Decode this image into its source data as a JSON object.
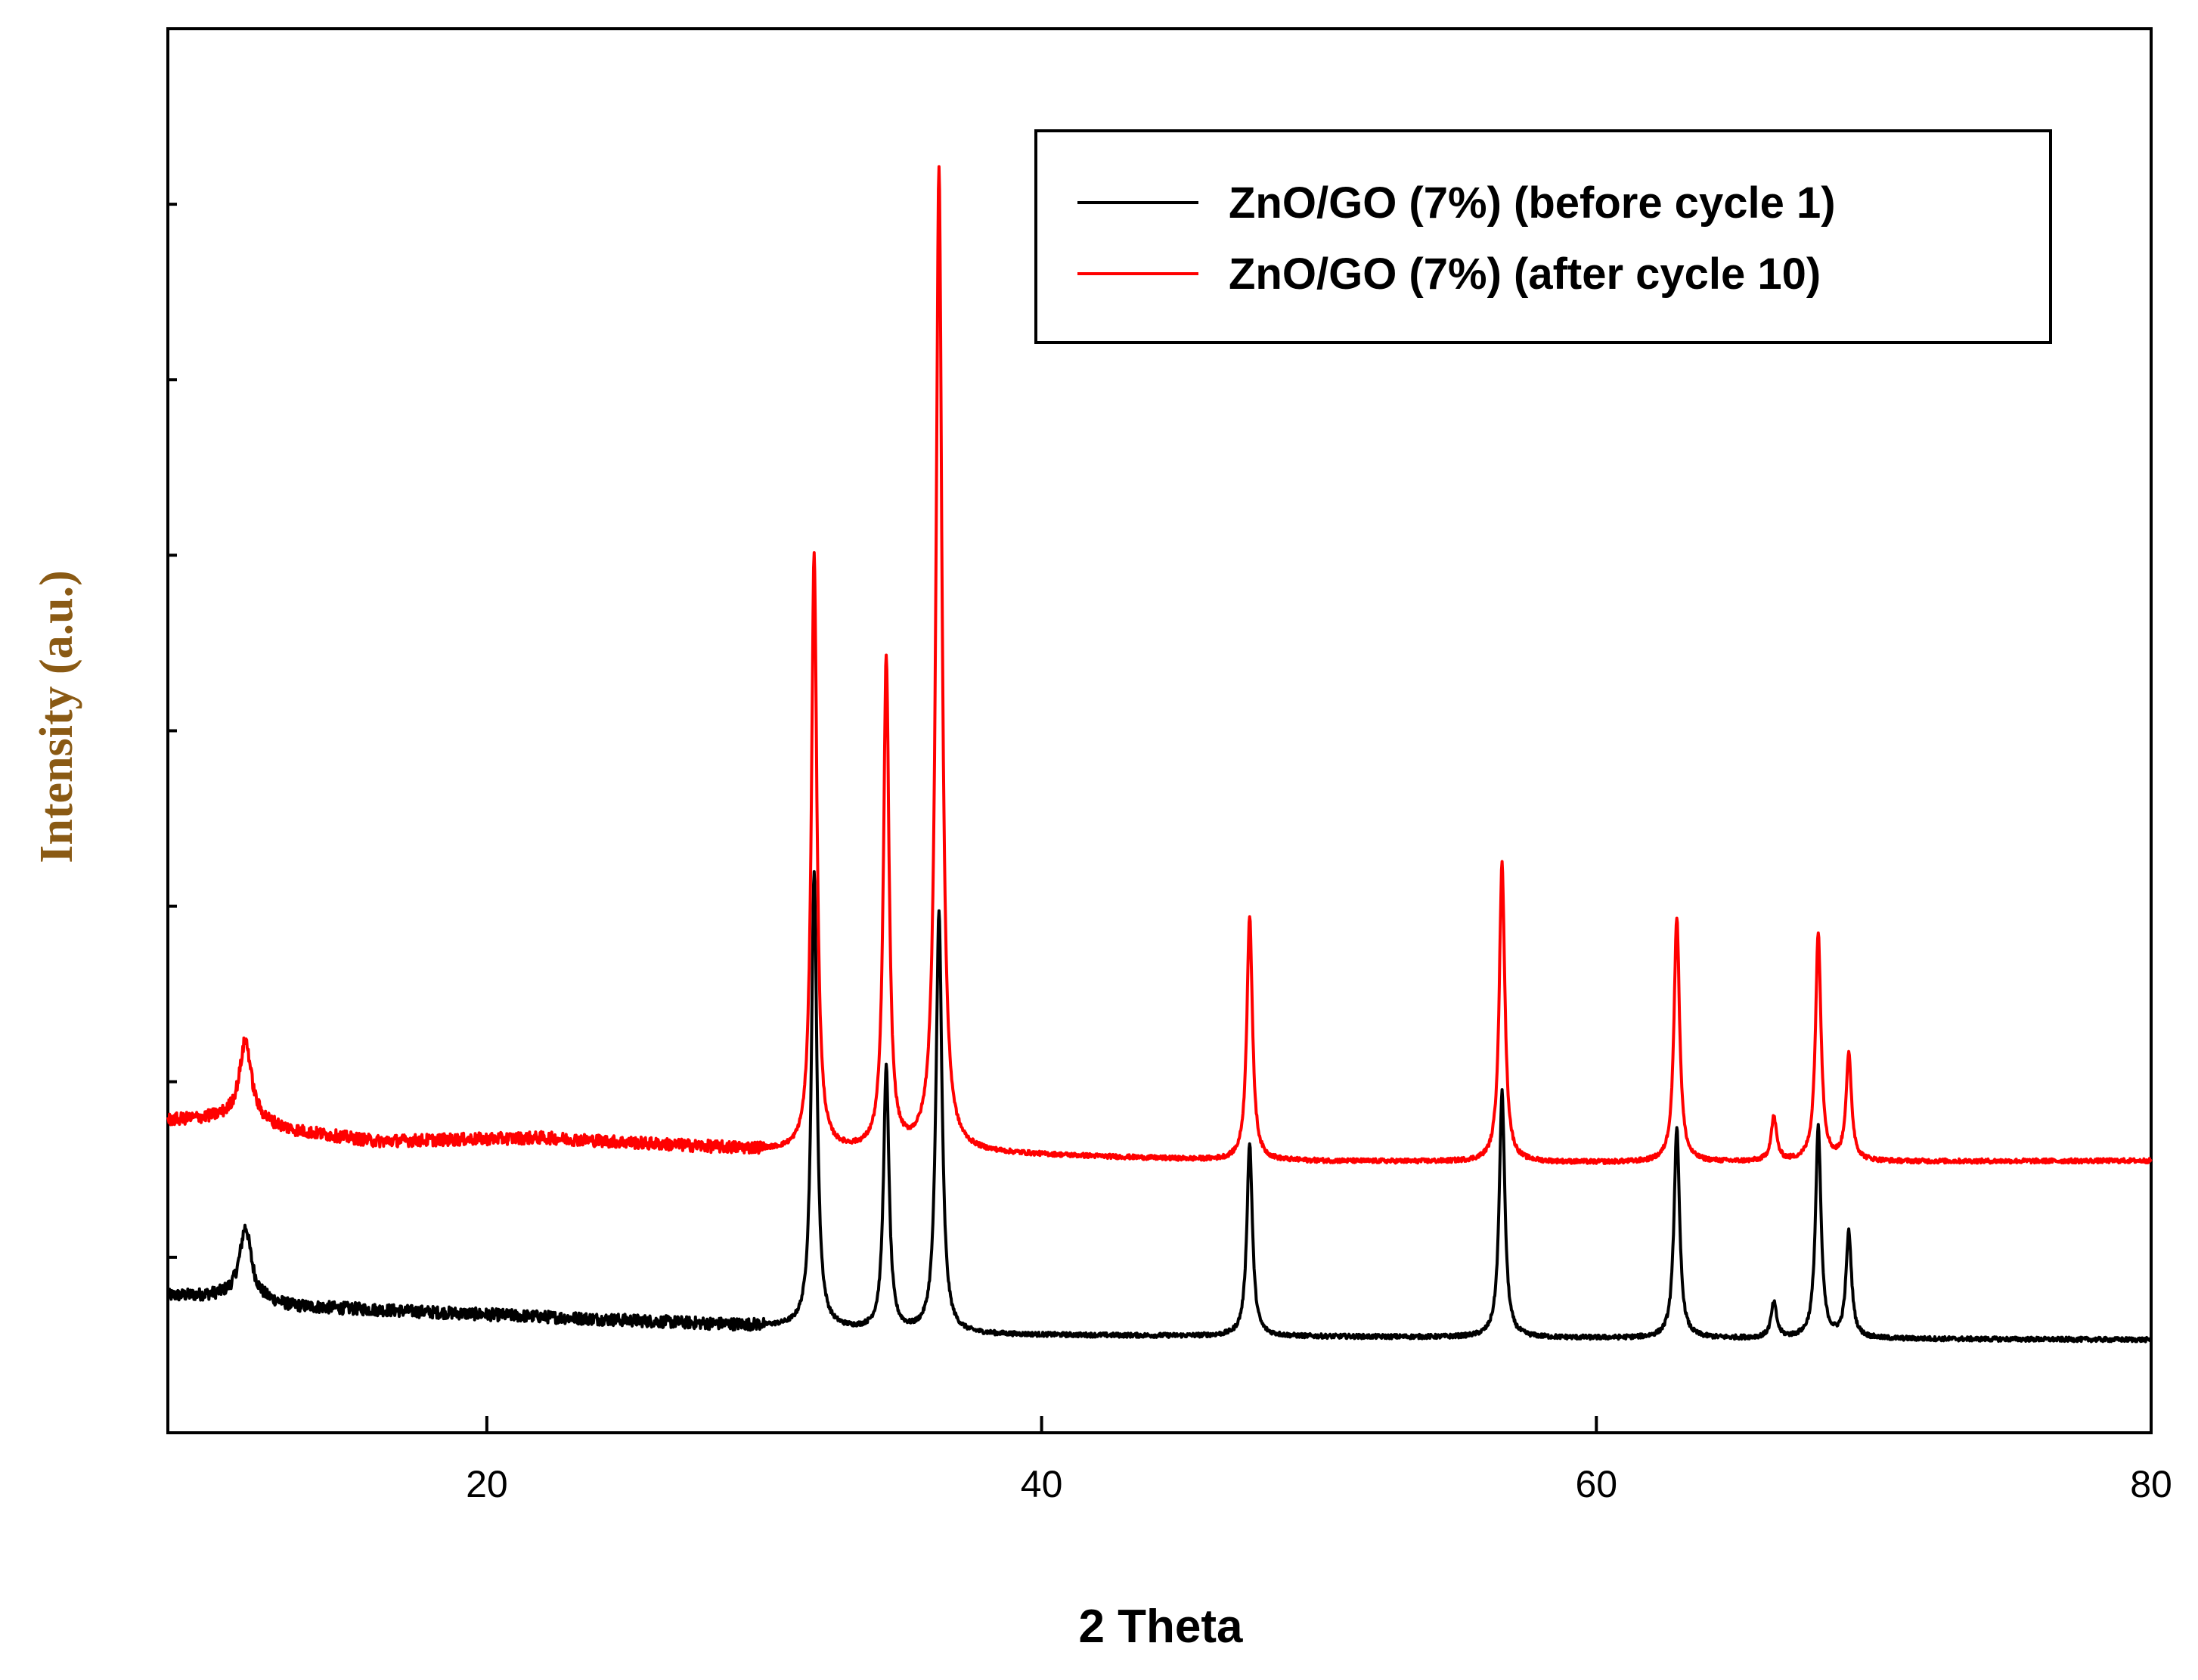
{
  "chart_data": {
    "type": "line",
    "title": "",
    "xlabel": "2 Theta",
    "ylabel": "Intensity (a.u.)",
    "xlim": [
      8.5,
      80
    ],
    "ylim": [
      0,
      8
    ],
    "xticks": [
      20,
      40,
      60,
      80
    ],
    "y_minor_ticks": [
      1,
      2,
      3,
      4,
      5,
      6,
      7
    ],
    "grid": false,
    "legend_position": "top-right",
    "series": [
      {
        "name": "ZnO/GO (7%) (before cycle 1)",
        "color": "#000000",
        "baseline": [
          [
            8.5,
            0.78
          ],
          [
            11,
            0.78
          ],
          [
            13,
            0.72
          ],
          [
            16,
            0.7
          ],
          [
            22,
            0.66
          ],
          [
            31,
            0.6
          ],
          [
            36,
            0.56
          ],
          [
            47,
            0.55
          ],
          [
            60,
            0.54
          ],
          [
            80,
            0.53
          ]
        ],
        "peaks": [
          {
            "x": 11.3,
            "height": 0.4,
            "width": 0.25
          },
          {
            "x": 31.8,
            "height": 2.6,
            "width": 0.12
          },
          {
            "x": 34.4,
            "height": 1.5,
            "width": 0.12
          },
          {
            "x": 36.3,
            "height": 2.4,
            "width": 0.13
          },
          {
            "x": 47.5,
            "height": 1.1,
            "width": 0.12
          },
          {
            "x": 56.6,
            "height": 1.4,
            "width": 0.12
          },
          {
            "x": 62.9,
            "height": 1.2,
            "width": 0.12
          },
          {
            "x": 66.4,
            "height": 0.2,
            "width": 0.12
          },
          {
            "x": 68.0,
            "height": 1.2,
            "width": 0.12
          },
          {
            "x": 69.1,
            "height": 0.6,
            "width": 0.12
          }
        ]
      },
      {
        "name": "ZnO/GO (7%) (after cycle 10)",
        "color": "#ff0000",
        "baseline": [
          [
            8.5,
            1.78
          ],
          [
            11,
            1.8
          ],
          [
            13,
            1.72
          ],
          [
            16,
            1.66
          ],
          [
            22,
            1.68
          ],
          [
            31,
            1.6
          ],
          [
            36,
            1.6
          ],
          [
            47,
            1.55
          ],
          [
            60,
            1.54
          ],
          [
            80,
            1.55
          ]
        ],
        "peaks": [
          {
            "x": 11.3,
            "height": 0.45,
            "width": 0.25
          },
          {
            "x": 31.8,
            "height": 3.4,
            "width": 0.12
          },
          {
            "x": 34.4,
            "height": 2.8,
            "width": 0.12
          },
          {
            "x": 36.3,
            "height": 5.6,
            "width": 0.13
          },
          {
            "x": 47.5,
            "height": 1.4,
            "width": 0.12
          },
          {
            "x": 56.6,
            "height": 1.7,
            "width": 0.12
          },
          {
            "x": 62.9,
            "height": 1.4,
            "width": 0.12
          },
          {
            "x": 66.4,
            "height": 0.25,
            "width": 0.12
          },
          {
            "x": 68.0,
            "height": 1.3,
            "width": 0.12
          },
          {
            "x": 69.1,
            "height": 0.6,
            "width": 0.12
          }
        ]
      }
    ]
  }
}
